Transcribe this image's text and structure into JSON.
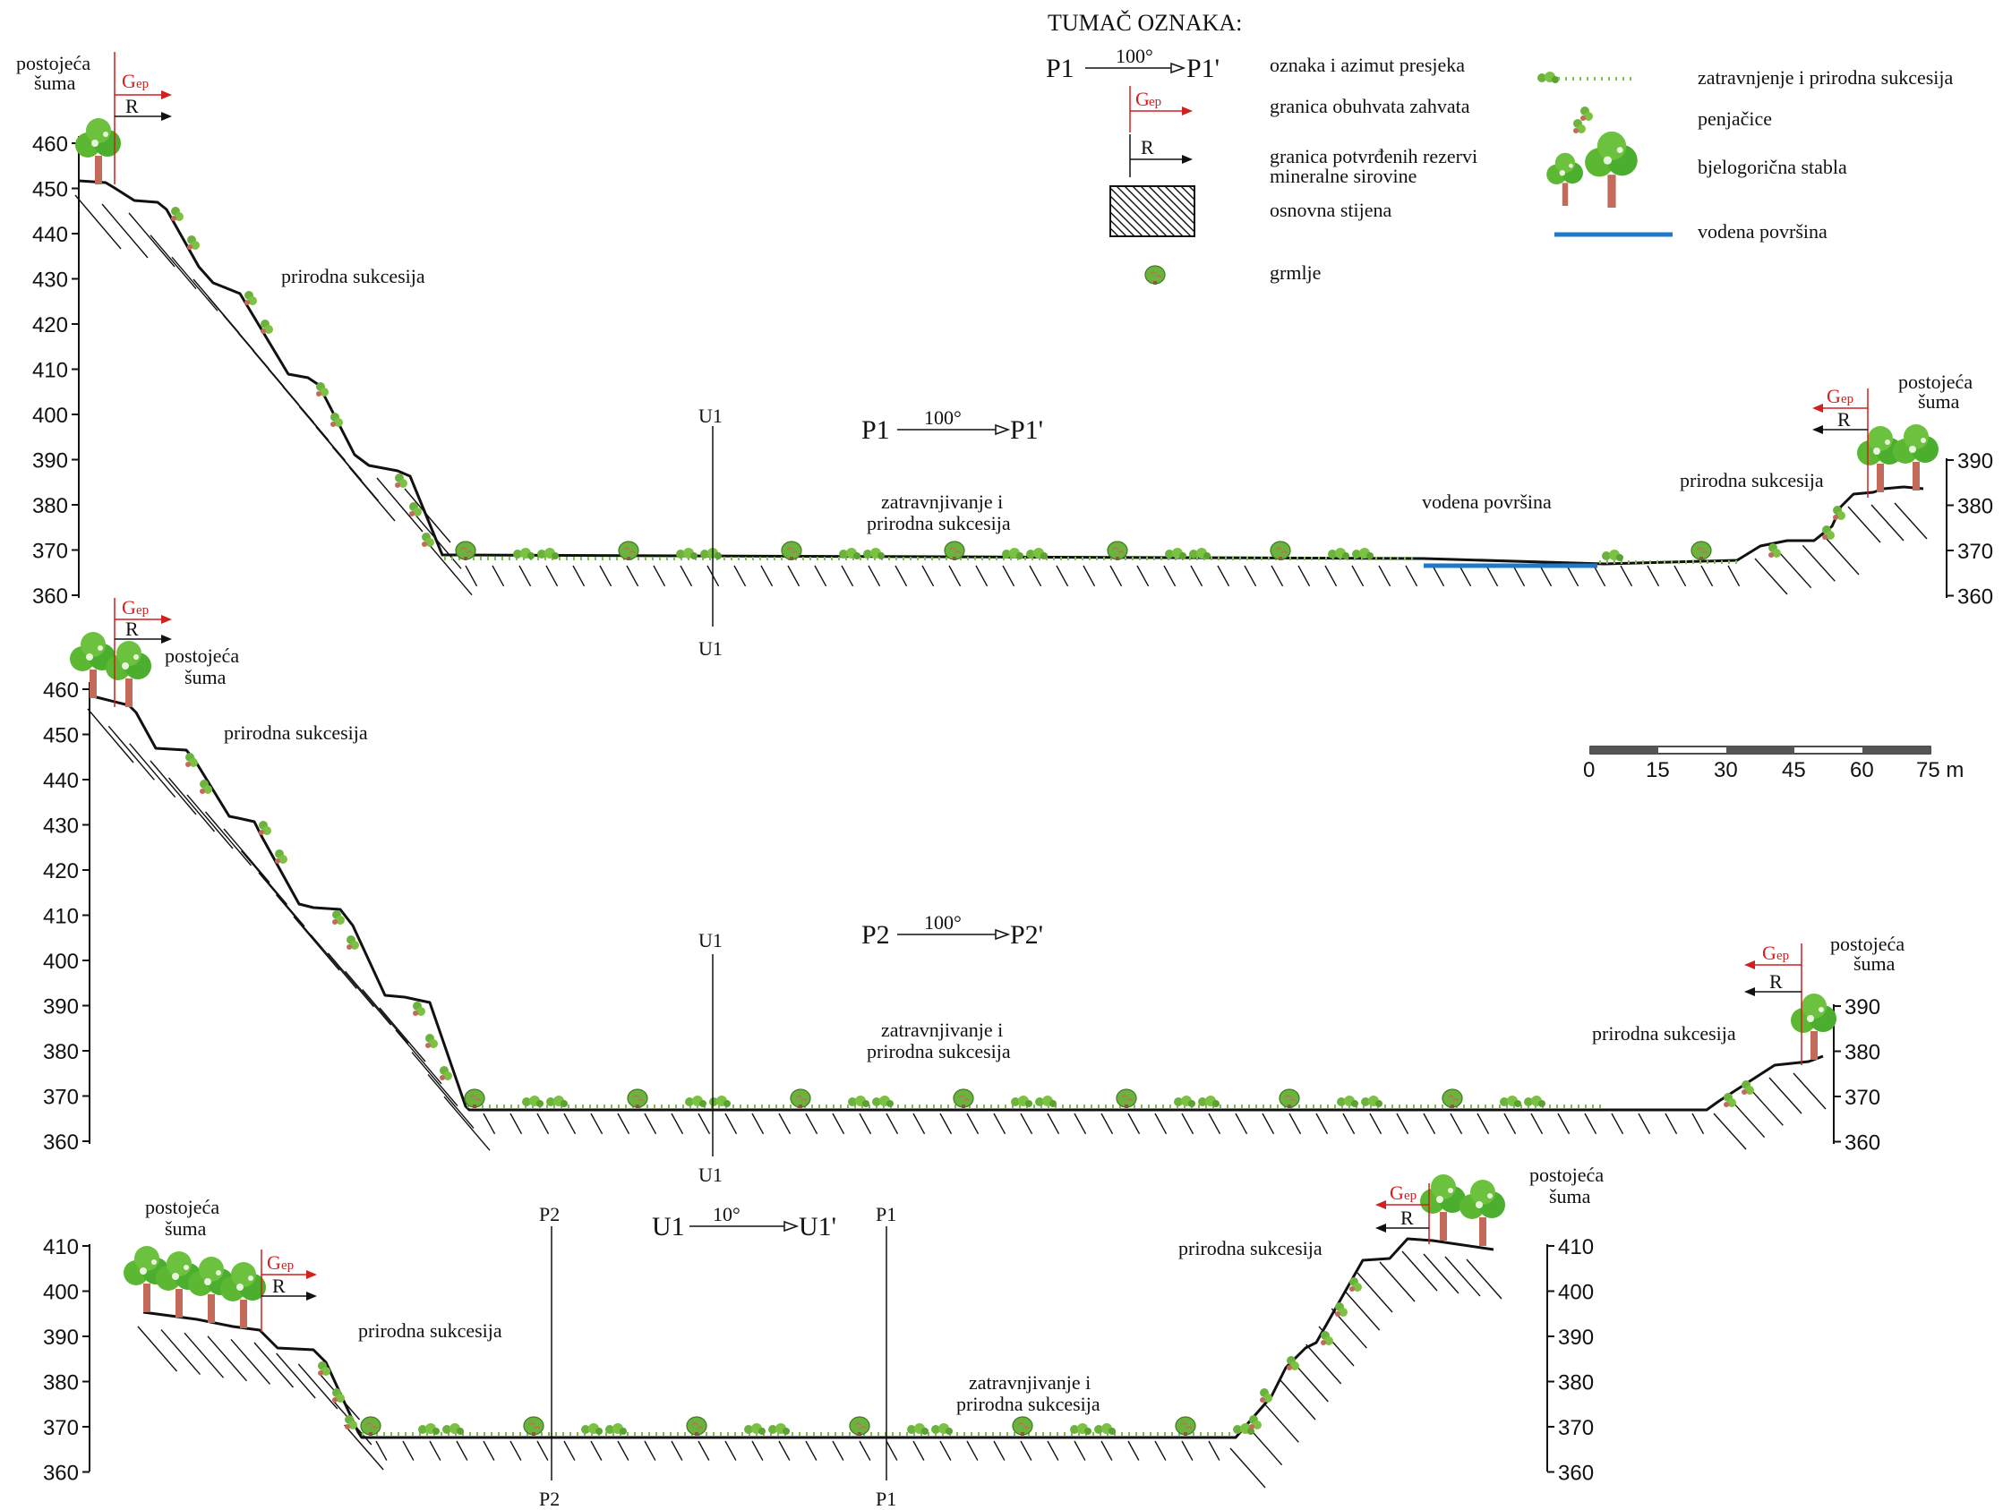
{
  "legend": {
    "title": "TUMAČ OZNAKA:",
    "section_sample": {
      "from": "P1",
      "angle": "100°",
      "to": "P1'"
    },
    "gep_label": "G",
    "gep_sub": "ep",
    "r_label": "R",
    "items_left": [
      {
        "symbol": "section-arrow",
        "text": "oznaka i azimut presjeka"
      },
      {
        "symbol": "gep-boundary",
        "text": "granica obuhvata zahvata"
      },
      {
        "symbol": "r-boundary",
        "text_line1": "granica potvrđenih rezervi",
        "text_line2": "mineralne sirovine"
      },
      {
        "symbol": "bedrock-hatch",
        "text": "osnovna stijena"
      },
      {
        "symbol": "shrub-icon",
        "text": "grmlje"
      }
    ],
    "items_right": [
      {
        "symbol": "grass-icon",
        "text": "zatravnjenje i prirodna sukcesija"
      },
      {
        "symbol": "climber-icon",
        "text": "penjačice"
      },
      {
        "symbol": "tree-icon",
        "text": "bjelogorična stabla"
      },
      {
        "symbol": "water-line",
        "text": "vodena površina"
      }
    ],
    "colors": {
      "grass": "#7cc242",
      "tree": "#4cae2e",
      "trunk": "#c46a5a",
      "water": "#1f78c8",
      "gep": "#d21f1f"
    }
  },
  "scale_bar": {
    "ticks": [
      "0",
      "15",
      "30",
      "45",
      "60",
      "75 m"
    ]
  },
  "labels": {
    "forest_l1": "postojeća",
    "forest_l2": "šuma",
    "succession": "prirodna sukcesija",
    "grass_l1": "zatravnjivanje i",
    "grass_l2": "prirodna sukcesija",
    "water": "vodena površina"
  },
  "sections": [
    {
      "id": "P1",
      "title": {
        "from": "P1",
        "angle": "100°",
        "to": "P1'"
      },
      "left_ticks": [
        "460",
        "450",
        "440",
        "430",
        "420",
        "410",
        "400",
        "390",
        "380",
        "370",
        "360"
      ],
      "right_ticks": [
        "390",
        "380",
        "370",
        "360"
      ],
      "crossings": [
        {
          "top": "U1",
          "bottom": "U1"
        }
      ]
    },
    {
      "id": "P2",
      "title": {
        "from": "P2",
        "angle": "100°",
        "to": "P2'"
      },
      "left_ticks": [
        "460",
        "450",
        "440",
        "430",
        "420",
        "410",
        "400",
        "390",
        "380",
        "370",
        "360"
      ],
      "right_ticks": [
        "390",
        "380",
        "370",
        "360"
      ],
      "crossings": [
        {
          "top": "U1",
          "bottom": "U1"
        }
      ]
    },
    {
      "id": "U1",
      "title": {
        "from": "U1",
        "angle": "10°",
        "to": "U1'"
      },
      "left_ticks": [
        "410",
        "400",
        "390",
        "380",
        "370",
        "360"
      ],
      "right_ticks": [
        "410",
        "400",
        "390",
        "380",
        "370",
        "360"
      ],
      "crossings": [
        {
          "top": "P2",
          "bottom": "P2"
        },
        {
          "top": "P1",
          "bottom": "P1"
        }
      ]
    }
  ]
}
